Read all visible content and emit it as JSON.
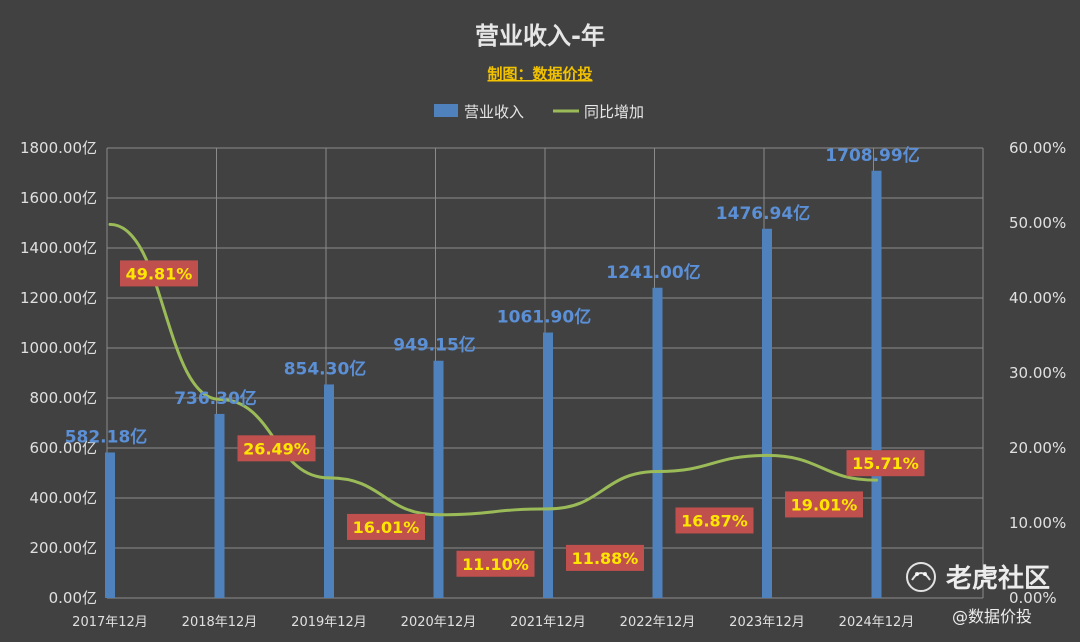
{
  "chart_data": {
    "type": "bar",
    "title": "营业收入-年",
    "subtitle": "制图：数据价投",
    "categories": [
      "2017年12月",
      "2018年12月",
      "2019年12月",
      "2020年12月",
      "2021年12月",
      "2022年12月",
      "2023年12月",
      "2024年12月"
    ],
    "series": [
      {
        "name": "营业收入",
        "type": "bar",
        "axis": "left",
        "color": "#4f81bd",
        "values": [
          582.18,
          736.3,
          854.3,
          949.15,
          1061.9,
          1241.0,
          1476.94,
          1708.99
        ],
        "labels": [
          "582.18亿",
          "736.30亿",
          "854.30亿",
          "949.15亿",
          "1061.90亿",
          "1241.00亿",
          "1476.94亿",
          "1708.99亿"
        ]
      },
      {
        "name": "同比增加",
        "type": "line",
        "axis": "right",
        "color": "#9bbb59",
        "values": [
          49.81,
          26.49,
          16.01,
          11.1,
          11.88,
          16.87,
          19.01,
          15.71
        ],
        "labels": [
          "49.81%",
          "26.49%",
          "16.01%",
          "11.10%",
          "11.88%",
          "16.87%",
          "19.01%",
          "15.71%"
        ]
      }
    ],
    "y_left": {
      "min": 0,
      "max": 1800,
      "ticks": [
        "0.00亿",
        "200.00亿",
        "400.00亿",
        "600.00亿",
        "800.00亿",
        "1000.00亿",
        "1200.00亿",
        "1400.00亿",
        "1600.00亿",
        "1800.00亿"
      ]
    },
    "y_right": {
      "min": 0,
      "max": 60,
      "ticks": [
        "0.00%",
        "10.00%",
        "20.00%",
        "30.00%",
        "40.00%",
        "50.00%",
        "60.00%"
      ]
    },
    "grid": true,
    "legend_position": "top"
  },
  "watermark": {
    "brand": "老虎社区",
    "handle": "@数据价投",
    "icon": "tiger-logo-icon"
  }
}
